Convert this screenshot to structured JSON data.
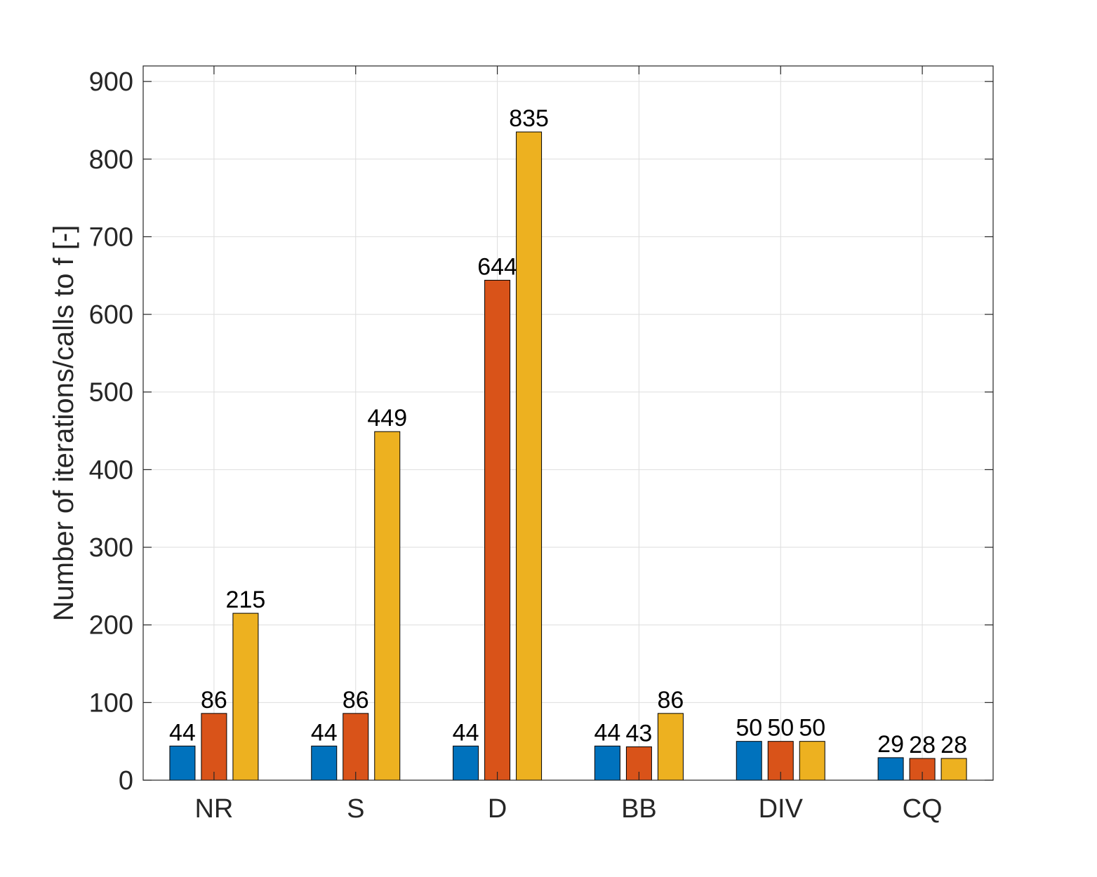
{
  "chart_data": {
    "type": "bar",
    "title": "",
    "xlabel": "",
    "ylabel": "Number of iterations/calls to f [-]",
    "categories": [
      "NR",
      "S",
      "D",
      "BB",
      "DIV",
      "CQ"
    ],
    "series": [
      {
        "values": [
          44,
          44,
          44,
          44,
          50,
          29
        ],
        "color": "#0072BD"
      },
      {
        "values": [
          86,
          86,
          644,
          43,
          50,
          28
        ],
        "color": "#D95319"
      },
      {
        "values": [
          215,
          449,
          835,
          86,
          50,
          28
        ],
        "color": "#EDB120"
      }
    ],
    "ylim": [
      0,
      920
    ],
    "yticks": [
      0,
      100,
      200,
      300,
      400,
      500,
      600,
      700,
      800,
      900
    ],
    "grid": true,
    "legend": "none",
    "data_labels": true
  }
}
